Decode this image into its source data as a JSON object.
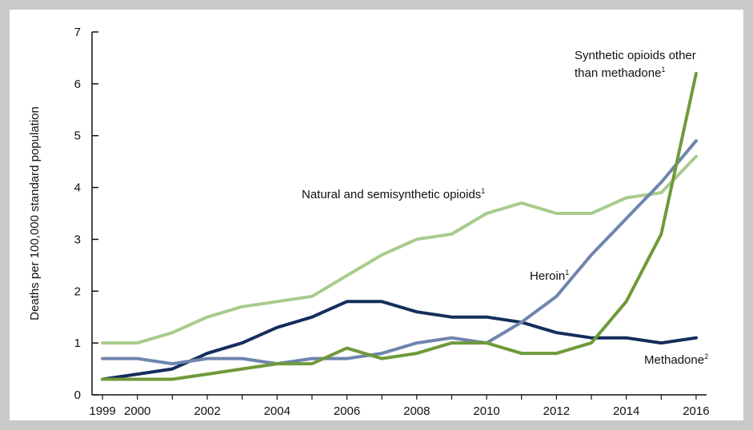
{
  "chart_data": {
    "type": "line",
    "ylabel": "Deaths per 100,000 standard population",
    "xlabel": "",
    "ylim": [
      0,
      7
    ],
    "yticks": [
      "0",
      "1",
      "2",
      "3",
      "4",
      "5",
      "6",
      "7"
    ],
    "xticks": [
      {
        "value": 1999,
        "label": "1999"
      },
      {
        "value": 2000,
        "label": "2000"
      },
      {
        "value": 2002,
        "label": "2002"
      },
      {
        "value": 2004,
        "label": "2004"
      },
      {
        "value": 2006,
        "label": "2006"
      },
      {
        "value": 2008,
        "label": "2008"
      },
      {
        "value": 2010,
        "label": "2010"
      },
      {
        "value": 2012,
        "label": "2012"
      },
      {
        "value": 2014,
        "label": "2014"
      },
      {
        "value": 2016,
        "label": "2016"
      }
    ],
    "x": [
      1999,
      2000,
      2001,
      2002,
      2003,
      2004,
      2005,
      2006,
      2007,
      2008,
      2009,
      2010,
      2011,
      2012,
      2013,
      2014,
      2015,
      2016
    ],
    "series": [
      {
        "name": "Natural and semisynthetic opioids",
        "sup": "1",
        "color": "#a9cb8c",
        "values": [
          1.0,
          1.0,
          1.2,
          1.5,
          1.7,
          1.8,
          1.9,
          2.3,
          2.7,
          3.0,
          3.1,
          3.5,
          3.7,
          3.5,
          3.5,
          3.8,
          3.9,
          4.6
        ]
      },
      {
        "name": "Methadone",
        "sup": "2",
        "color": "#152d5c",
        "values": [
          0.3,
          0.4,
          0.5,
          0.8,
          1.0,
          1.3,
          1.5,
          1.8,
          1.8,
          1.6,
          1.5,
          1.5,
          1.4,
          1.2,
          1.1,
          1.1,
          1.0,
          1.1
        ]
      },
      {
        "name": "Heroin",
        "sup": "1",
        "color": "#6f85ad",
        "values": [
          0.7,
          0.7,
          0.6,
          0.7,
          0.7,
          0.6,
          0.7,
          0.7,
          0.8,
          1.0,
          1.1,
          1.0,
          1.4,
          1.9,
          2.7,
          3.4,
          4.1,
          4.9
        ]
      },
      {
        "name": "Synthetic opioids other than methadone",
        "sup": "1",
        "color": "#6f9a3a",
        "values": [
          0.3,
          0.3,
          0.3,
          0.4,
          0.5,
          0.6,
          0.6,
          0.9,
          0.7,
          0.8,
          1.0,
          1.0,
          0.8,
          0.8,
          1.0,
          1.8,
          3.1,
          6.2
        ]
      }
    ],
    "annotations": {
      "natural": {
        "text": "Natural and semisynthetic opioids",
        "sup": "1"
      },
      "heroin": {
        "text": "Heroin",
        "sup": "1"
      },
      "methadone": {
        "text": "Methadone",
        "sup": "2"
      },
      "synthetic_line1": "Synthetic opioids other",
      "synthetic_line2": {
        "text": "than methadone",
        "sup": "1"
      }
    }
  }
}
